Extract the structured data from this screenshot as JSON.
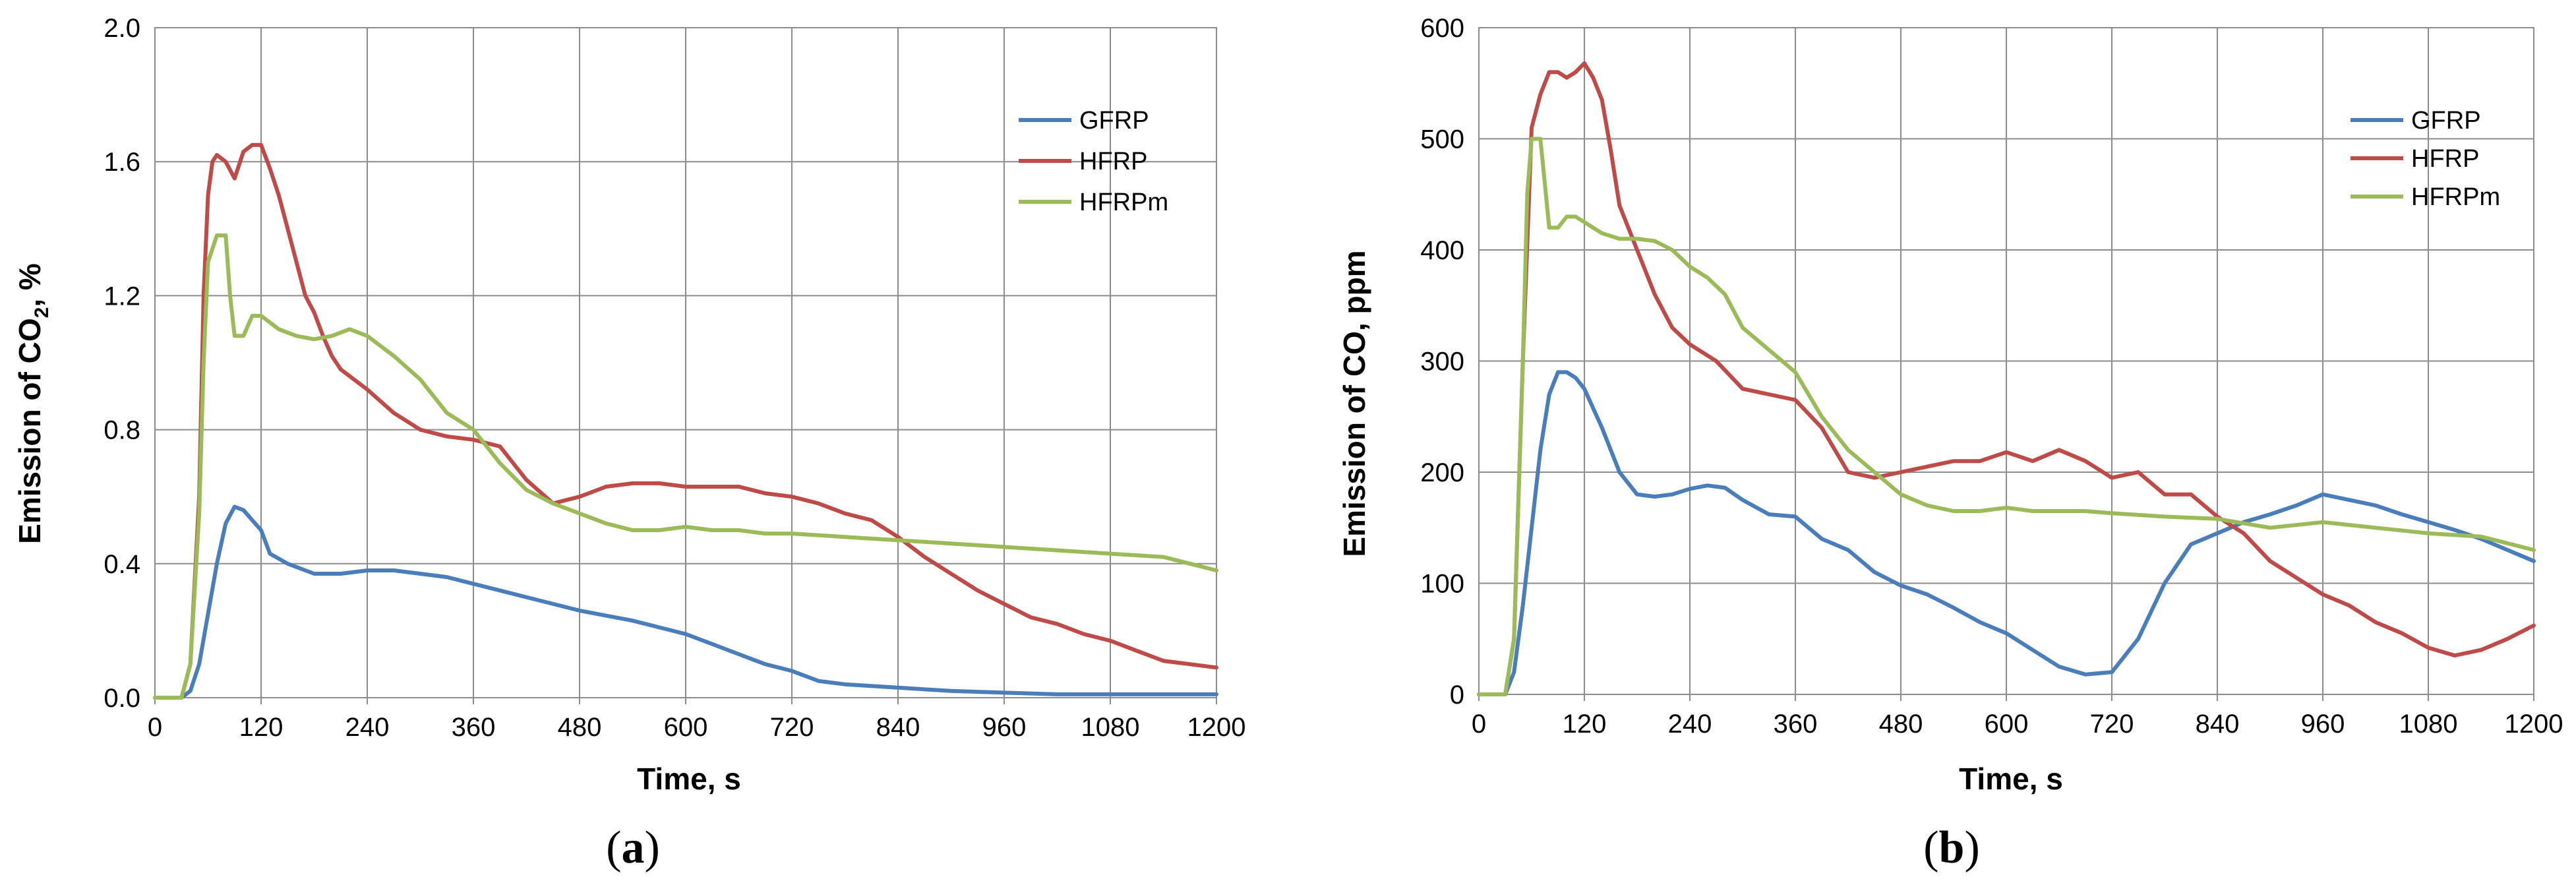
{
  "chart_data": [
    {
      "type": "line",
      "panel_label": "(a)",
      "panel_letter": "a",
      "xlabel": "Time, s",
      "ylabel": "Emission of CO₂, %",
      "ylabel_parts": {
        "prefix": "Emission of CO",
        "sub": "2",
        "suffix": ", %"
      },
      "xlim": [
        0,
        1200
      ],
      "ylim": [
        0,
        2.0
      ],
      "x_ticks": [
        "0",
        "120",
        "240",
        "360",
        "480",
        "600",
        "720",
        "840",
        "960",
        "1080",
        "1200"
      ],
      "y_ticks": [
        "0.0",
        "0.4",
        "0.8",
        "1.2",
        "1.6",
        "2.0"
      ],
      "grid": true,
      "legend_position": "top-right",
      "series": [
        {
          "name": "GFRP",
          "color": "#4a7ebb",
          "x": [
            0,
            30,
            40,
            50,
            60,
            70,
            80,
            90,
            100,
            110,
            120,
            130,
            150,
            180,
            210,
            240,
            270,
            300,
            330,
            360,
            420,
            480,
            540,
            600,
            630,
            660,
            690,
            720,
            750,
            780,
            840,
            900,
            960,
            1020,
            1080,
            1140,
            1200
          ],
          "y": [
            0,
            0,
            0.02,
            0.1,
            0.25,
            0.4,
            0.52,
            0.57,
            0.56,
            0.53,
            0.5,
            0.43,
            0.4,
            0.37,
            0.37,
            0.38,
            0.38,
            0.37,
            0.36,
            0.34,
            0.3,
            0.26,
            0.23,
            0.19,
            0.16,
            0.13,
            0.1,
            0.08,
            0.05,
            0.04,
            0.03,
            0.02,
            0.015,
            0.01,
            0.01,
            0.01,
            0.01
          ]
        },
        {
          "name": "HFRP",
          "color": "#be4b48",
          "x": [
            0,
            30,
            40,
            50,
            55,
            60,
            65,
            70,
            80,
            90,
            100,
            110,
            120,
            130,
            140,
            150,
            160,
            170,
            180,
            190,
            200,
            210,
            240,
            270,
            300,
            330,
            360,
            390,
            420,
            450,
            480,
            510,
            540,
            570,
            600,
            630,
            660,
            690,
            720,
            750,
            780,
            810,
            840,
            870,
            900,
            930,
            960,
            990,
            1020,
            1050,
            1080,
            1110,
            1140,
            1170,
            1200
          ],
          "y": [
            0,
            0,
            0.1,
            0.6,
            1.2,
            1.5,
            1.6,
            1.62,
            1.6,
            1.55,
            1.63,
            1.65,
            1.65,
            1.58,
            1.5,
            1.4,
            1.3,
            1.2,
            1.15,
            1.08,
            1.02,
            0.98,
            0.92,
            0.85,
            0.8,
            0.78,
            0.77,
            0.75,
            0.65,
            0.58,
            0.6,
            0.63,
            0.64,
            0.64,
            0.63,
            0.63,
            0.63,
            0.61,
            0.6,
            0.58,
            0.55,
            0.53,
            0.48,
            0.42,
            0.37,
            0.32,
            0.28,
            0.24,
            0.22,
            0.19,
            0.17,
            0.14,
            0.11,
            0.1,
            0.09
          ]
        },
        {
          "name": "HFRPm",
          "color": "#9bbb59",
          "x": [
            0,
            30,
            40,
            50,
            55,
            60,
            70,
            80,
            85,
            90,
            100,
            110,
            120,
            140,
            160,
            180,
            200,
            220,
            240,
            270,
            300,
            330,
            360,
            390,
            420,
            450,
            480,
            510,
            540,
            570,
            600,
            630,
            660,
            690,
            720,
            780,
            840,
            900,
            960,
            1020,
            1080,
            1140,
            1170,
            1200
          ],
          "y": [
            0,
            0,
            0.1,
            0.55,
            1.0,
            1.3,
            1.38,
            1.38,
            1.2,
            1.08,
            1.08,
            1.14,
            1.14,
            1.1,
            1.08,
            1.07,
            1.08,
            1.1,
            1.08,
            1.02,
            0.95,
            0.85,
            0.8,
            0.7,
            0.62,
            0.58,
            0.55,
            0.52,
            0.5,
            0.5,
            0.51,
            0.5,
            0.5,
            0.49,
            0.49,
            0.48,
            0.47,
            0.46,
            0.45,
            0.44,
            0.43,
            0.42,
            0.4,
            0.38
          ]
        }
      ]
    },
    {
      "type": "line",
      "panel_label": "(b)",
      "panel_letter": "b",
      "xlabel": "Time, s",
      "ylabel": "Emission of  CO, ppm",
      "xlim": [
        0,
        1200
      ],
      "ylim": [
        0,
        600
      ],
      "x_ticks": [
        "0",
        "120",
        "240",
        "360",
        "480",
        "600",
        "720",
        "840",
        "960",
        "1080",
        "1200"
      ],
      "y_ticks": [
        "0",
        "100",
        "200",
        "300",
        "400",
        "500",
        "600"
      ],
      "grid": true,
      "legend_position": "top-right",
      "series": [
        {
          "name": "GFRP",
          "color": "#4a7ebb",
          "x": [
            0,
            30,
            40,
            50,
            60,
            70,
            80,
            90,
            100,
            110,
            120,
            140,
            160,
            180,
            200,
            220,
            240,
            260,
            280,
            300,
            330,
            360,
            390,
            420,
            450,
            480,
            510,
            540,
            570,
            600,
            630,
            660,
            690,
            720,
            750,
            780,
            810,
            840,
            870,
            900,
            930,
            960,
            990,
            1020,
            1050,
            1080,
            1110,
            1140,
            1170,
            1200
          ],
          "y": [
            0,
            0,
            20,
            80,
            150,
            220,
            270,
            290,
            290,
            285,
            275,
            240,
            200,
            180,
            178,
            180,
            185,
            188,
            186,
            175,
            162,
            160,
            140,
            130,
            110,
            98,
            90,
            78,
            65,
            55,
            40,
            25,
            18,
            20,
            50,
            100,
            135,
            145,
            155,
            162,
            170,
            180,
            175,
            170,
            162,
            155,
            148,
            140,
            130,
            120
          ]
        },
        {
          "name": "HFRP",
          "color": "#be4b48",
          "x": [
            0,
            30,
            40,
            50,
            60,
            70,
            80,
            90,
            100,
            110,
            120,
            130,
            140,
            150,
            160,
            180,
            200,
            220,
            240,
            270,
            300,
            330,
            360,
            390,
            420,
            450,
            480,
            510,
            540,
            570,
            600,
            630,
            660,
            690,
            720,
            750,
            780,
            810,
            840,
            870,
            900,
            930,
            960,
            990,
            1020,
            1050,
            1080,
            1110,
            1140,
            1170,
            1200
          ],
          "y": [
            0,
            0,
            50,
            300,
            510,
            540,
            560,
            560,
            555,
            560,
            568,
            555,
            535,
            490,
            440,
            400,
            360,
            330,
            315,
            300,
            275,
            270,
            265,
            240,
            200,
            195,
            200,
            205,
            210,
            210,
            218,
            210,
            220,
            210,
            195,
            200,
            180,
            180,
            160,
            145,
            120,
            105,
            90,
            80,
            65,
            55,
            42,
            35,
            40,
            50,
            62
          ]
        },
        {
          "name": "HFRPm",
          "color": "#9bbb59",
          "x": [
            0,
            30,
            40,
            50,
            55,
            60,
            70,
            80,
            90,
            100,
            110,
            120,
            140,
            160,
            180,
            200,
            220,
            240,
            260,
            280,
            300,
            330,
            360,
            390,
            420,
            450,
            480,
            510,
            540,
            570,
            600,
            630,
            660,
            690,
            720,
            780,
            840,
            900,
            960,
            1020,
            1080,
            1140,
            1200
          ],
          "y": [
            0,
            0,
            50,
            300,
            450,
            500,
            500,
            420,
            420,
            430,
            430,
            425,
            415,
            410,
            410,
            408,
            400,
            385,
            375,
            360,
            330,
            310,
            290,
            250,
            220,
            200,
            180,
            170,
            165,
            165,
            168,
            165,
            165,
            165,
            163,
            160,
            158,
            150,
            155,
            150,
            145,
            142,
            130
          ]
        }
      ]
    }
  ]
}
